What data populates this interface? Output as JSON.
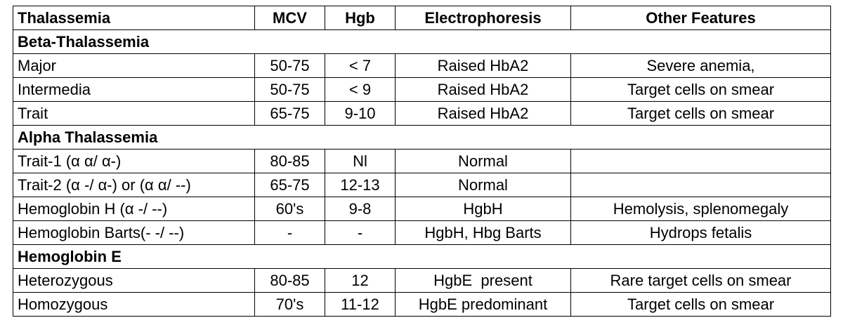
{
  "table": {
    "header": [
      "Thalassemia",
      "MCV",
      "Hgb",
      "Electrophoresis",
      "Other Features"
    ],
    "sections": [
      {
        "title": "Beta-Thalassemia",
        "rows": [
          [
            "Major",
            "50-75",
            "< 7",
            "Raised HbA2",
            "Severe anemia,"
          ],
          [
            "Intermedia",
            "50-75",
            "< 9",
            "Raised HbA2",
            "Target cells on smear"
          ],
          [
            "Trait",
            "65-75",
            "9-10",
            "Raised HbA2",
            "Target cells on smear"
          ]
        ]
      },
      {
        "title": "Alpha Thalassemia",
        "rows": [
          [
            "Trait-1 (α α/ α-)",
            "80-85",
            "Nl",
            "Normal",
            ""
          ],
          [
            "Trait-2 (α -/ α-) or (α α/ --)",
            "65-75",
            "12-13",
            "Normal",
            ""
          ],
          [
            "Hemoglobin H (α -/ --)",
            "60's",
            "9-8",
            "HgbH",
            "Hemolysis, splenomegaly"
          ],
          [
            "Hemoglobin Barts(- -/ --)",
            "-",
            "-",
            "HgbH, Hbg Barts",
            "Hydrops fetalis"
          ]
        ]
      },
      {
        "title": "Hemoglobin E",
        "rows": [
          [
            "Heterozygous",
            "80-85",
            "12",
            "HgbE  present",
            "Rare target cells on smear"
          ],
          [
            "Homozygous",
            "70's",
            "11-12",
            "HgbE predominant",
            "Target cells on smear"
          ]
        ]
      }
    ]
  }
}
